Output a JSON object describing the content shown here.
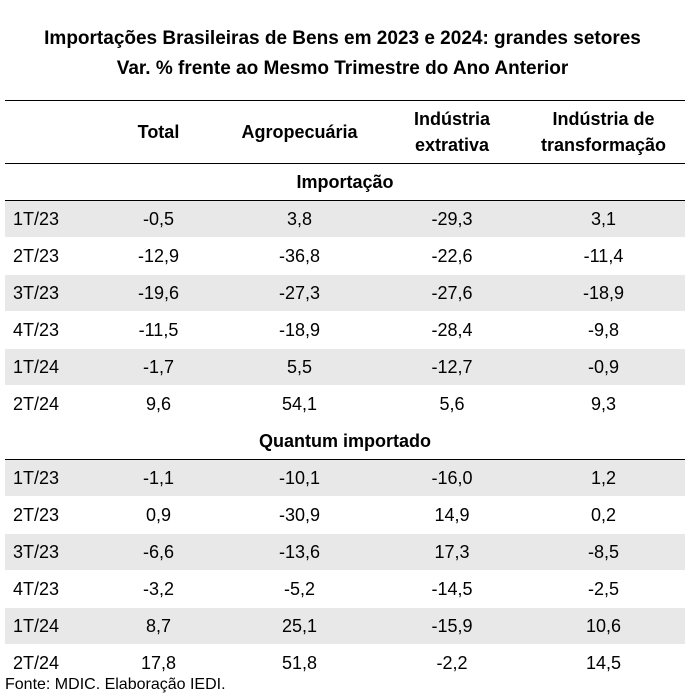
{
  "title_line1": "Importações Brasileiras de Bens em 2023 e 2024: grandes setores",
  "title_line2": "Var. %  frente ao Mesmo Trimestre do Ano Anterior",
  "columns": [
    "",
    "Total",
    "Agropecuária",
    "Indústria extrativa",
    "Indústria de transformação"
  ],
  "sections": [
    {
      "name": "Importação",
      "rows": [
        {
          "period": "1T/23",
          "values": [
            "-0,5",
            "3,8",
            "-29,3",
            "3,1"
          ]
        },
        {
          "period": "2T/23",
          "values": [
            "-12,9",
            "-36,8",
            "-22,6",
            "-11,4"
          ]
        },
        {
          "period": "3T/23",
          "values": [
            "-19,6",
            "-27,3",
            "-27,6",
            "-18,9"
          ]
        },
        {
          "period": "4T/23",
          "values": [
            "-11,5",
            "-18,9",
            "-28,4",
            "-9,8"
          ]
        },
        {
          "period": "1T/24",
          "values": [
            "-1,7",
            "5,5",
            "-12,7",
            "-0,9"
          ]
        },
        {
          "period": "2T/24",
          "values": [
            "9,6",
            "54,1",
            "5,6",
            "9,3"
          ]
        }
      ]
    },
    {
      "name": "Quantum importado",
      "rows": [
        {
          "period": "1T/23",
          "values": [
            "-1,1",
            "-10,1",
            "-16,0",
            "1,2"
          ]
        },
        {
          "period": "2T/23",
          "values": [
            "0,9",
            "-30,9",
            "14,9",
            "0,2"
          ]
        },
        {
          "period": "3T/23",
          "values": [
            "-6,6",
            "-13,6",
            "17,3",
            "-8,5"
          ]
        },
        {
          "period": "4T/23",
          "values": [
            "-3,2",
            "-5,2",
            "-14,5",
            "-2,5"
          ]
        },
        {
          "period": "1T/24",
          "values": [
            "8,7",
            "25,1",
            "-15,9",
            "10,6"
          ]
        },
        {
          "period": "2T/24",
          "values": [
            "17,8",
            "51,8",
            "-2,2",
            "14,5"
          ]
        }
      ]
    }
  ],
  "source": "Fonte: MDIC. Elaboração IEDI.",
  "colors": {
    "shade": "#e8e8e8",
    "rule": "#000000"
  }
}
